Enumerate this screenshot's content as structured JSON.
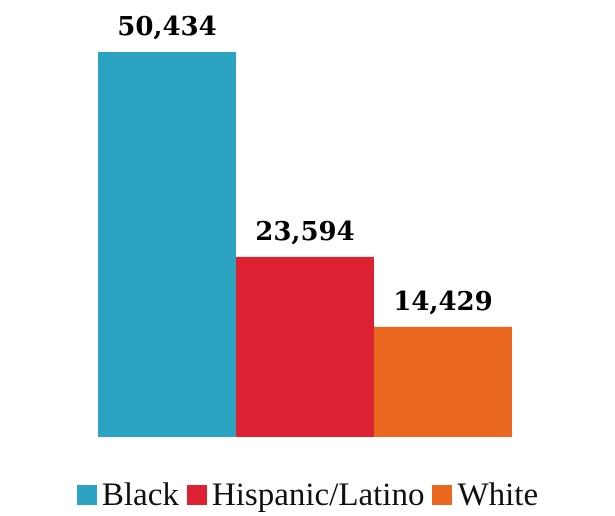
{
  "chart_data": {
    "type": "bar",
    "categories": [
      "Black",
      "Hispanic/Latino",
      "White"
    ],
    "values": [
      50434,
      23594,
      14429
    ],
    "value_labels": [
      "50,434",
      "23,594",
      "14,429"
    ],
    "colors": [
      "#2ba3c1",
      "#dc2232",
      "#ea6720"
    ],
    "ylim": [
      0,
      50434
    ],
    "grid": false,
    "legend_position": "bottom"
  },
  "legend": {
    "items": [
      {
        "label": "Black",
        "color": "#2ba3c1"
      },
      {
        "label": "Hispanic/Latino",
        "color": "#dc2232"
      },
      {
        "label": "White",
        "color": "#ea6720"
      }
    ]
  }
}
